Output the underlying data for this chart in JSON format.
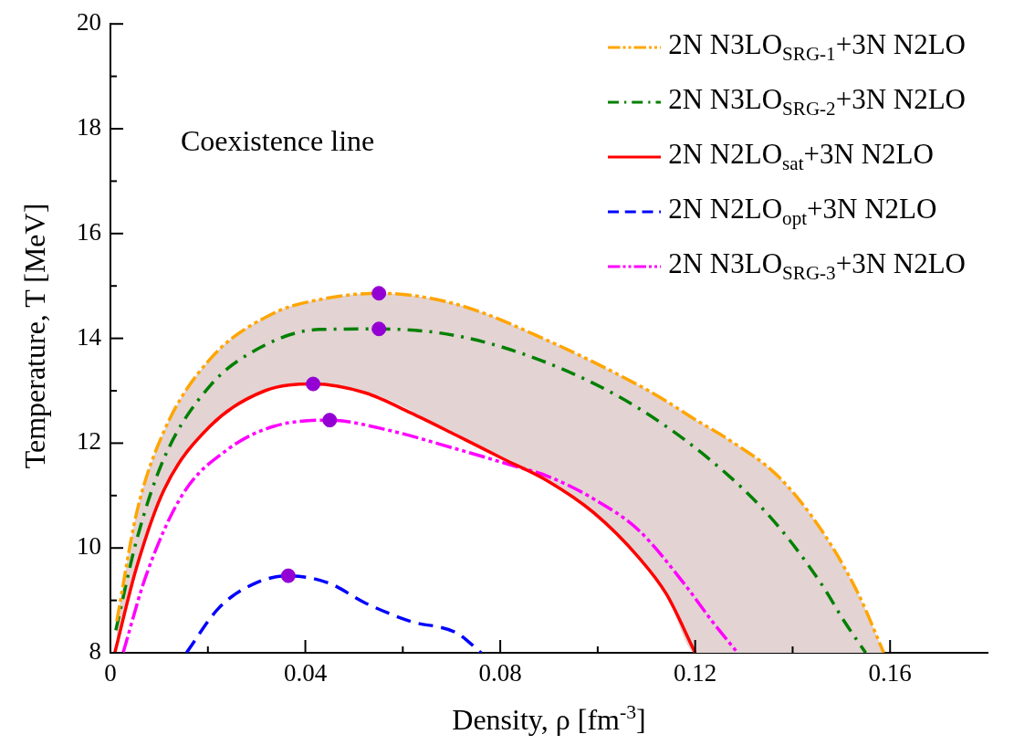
{
  "chart_data": {
    "type": "line",
    "xlabel": "Density, ρ [fm$^{-3}$]",
    "ylabel": "Temperature, T [MeV]",
    "annotations": [
      "Coexistence line"
    ],
    "xlim": [
      0,
      0.18
    ],
    "xticks": [
      0,
      0.04,
      0.08,
      0.12,
      0.16
    ],
    "ylim": [
      8,
      20
    ],
    "yticks": [
      8,
      10,
      12,
      14,
      16,
      18,
      20
    ],
    "grid": false,
    "legend": "top right",
    "marker": "none",
    "series": [
      {
        "name": "2N N3LO$_{SRG-1}$+3N N2LO",
        "color": "#ffa500",
        "line_style": "dashdotdot",
        "x": [
          0.0013,
          0.0054,
          0.011,
          0.0204,
          0.0335,
          0.0429,
          0.0551,
          0.071,
          0.0897,
          0.1085,
          0.1141,
          0.12,
          0.127,
          0.137,
          0.146,
          0.1535,
          0.1587
        ],
        "values": [
          8.6,
          10.68,
          12.23,
          13.6,
          14.48,
          14.74,
          14.86,
          14.65,
          13.96,
          13.1,
          12.8,
          12.45,
          12.06,
          11.37,
          10.33,
          9.12,
          8
        ],
        "upper": [
          8.6,
          10.68,
          12.23,
          13.6,
          14.48,
          14.74,
          14.86,
          14.65,
          13.96,
          13.1,
          12.8,
          12.45,
          12.06,
          11.37,
          10.33,
          9.12,
          8
        ],
        "lower": [
          8.1,
          9.64,
          11.11,
          12.32,
          13.03,
          13.12,
          12.9,
          12.15,
          11.28,
          9.81,
          9.12,
          8,
          8,
          8,
          8,
          8,
          8
        ]
      },
      {
        "name": "2N N3LO$_{SRG-2}$+3N N2LO",
        "color": "#008000",
        "line_style": "dashdot",
        "x": [
          0.0011,
          0.0054,
          0.011,
          0.0204,
          0.0317,
          0.0429,
          0.0551,
          0.071,
          0.0897,
          0.1085,
          0.127,
          0.137,
          0.146,
          0.1506,
          0.155
        ],
        "values": [
          8.43,
          10.16,
          11.71,
          13.09,
          13.87,
          14.17,
          14.18,
          14.05,
          13.53,
          12.66,
          11.37,
          10.42,
          9.3,
          8.6,
          8
        ]
      },
      {
        "name": "2N N2LO$_{sat}$+3N N2LO",
        "color": "#ff0000",
        "line_style": "solid",
        "x": [
          0.0009,
          0.0054,
          0.011,
          0.0204,
          0.0317,
          0.0416,
          0.0523,
          0.0616,
          0.071,
          0.0804,
          0.0897,
          0.0991,
          0.1085,
          0.1141,
          0.12
        ],
        "values": [
          8,
          9.64,
          11.11,
          12.32,
          13.0,
          13.13,
          12.96,
          12.58,
          12.15,
          11.71,
          11.28,
          10.68,
          9.81,
          9.12,
          8
        ]
      },
      {
        "name": "2N N2LO$_{opt}$+3N N2LO",
        "color": "#0000ff",
        "line_style": "dashed",
        "x": [
          0.0156,
          0.0223,
          0.0298,
          0.0365,
          0.0448,
          0.0523,
          0.0616,
          0.071,
          0.0761
        ],
        "values": [
          8,
          8.86,
          9.33,
          9.47,
          9.33,
          8.95,
          8.6,
          8.38,
          8
        ]
      },
      {
        "name": "2N N3LO$_{SRG-3}$+3N N2LO",
        "color": "#ff00ff",
        "line_style": "dashdotdot",
        "x": [
          0.0026,
          0.0073,
          0.0148,
          0.0242,
          0.0335,
          0.045,
          0.056,
          0.071,
          0.0823,
          0.0897,
          0.0991,
          0.1085,
          0.1179,
          0.1235,
          0.1287
        ],
        "values": [
          8,
          9.47,
          11.02,
          11.89,
          12.32,
          12.44,
          12.27,
          11.89,
          11.58,
          11.37,
          10.94,
          10.33,
          9.3,
          8.6,
          8
        ]
      },
      {
        "type": "scatter",
        "color": "#9400d3",
        "marker": "circle",
        "x": [
          0.0551,
          0.0551,
          0.0416,
          0.045,
          0.0365
        ],
        "values": [
          14.86,
          14.18,
          13.13,
          12.44,
          9.47
        ]
      }
    ]
  }
}
